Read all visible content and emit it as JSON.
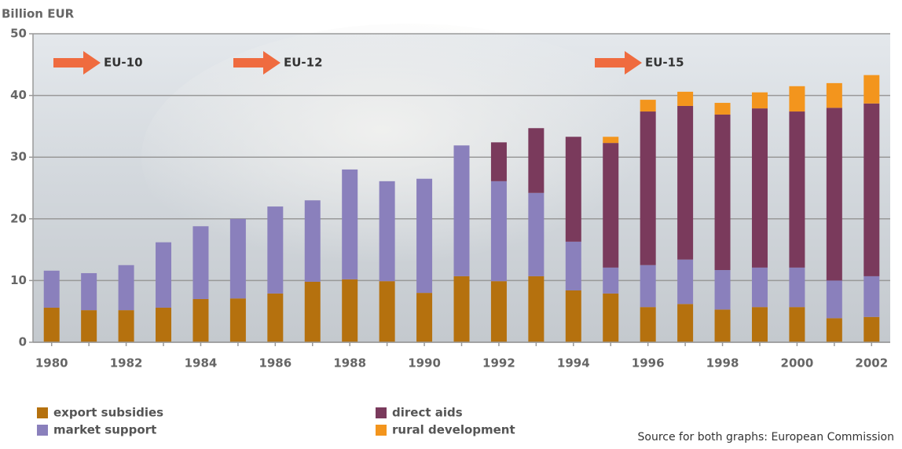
{
  "chart_data": {
    "type": "stacked_bar",
    "y_label": "Billion EUR",
    "categories": [
      "1980",
      null,
      "1982",
      null,
      "1984",
      null,
      "1986",
      null,
      "1988",
      null,
      "1990",
      null,
      "1992",
      null,
      "1994",
      null,
      "1996",
      null,
      "1998",
      null,
      "2000",
      null,
      "2002"
    ],
    "series": [
      {
        "name": "export subsidies",
        "color": "#b5710e",
        "values": [
          5.6,
          5.2,
          5.2,
          5.6,
          7.0,
          7.1,
          7.9,
          9.8,
          10.2,
          9.9,
          8.0,
          10.7,
          9.9,
          10.7,
          8.4,
          7.9,
          5.7,
          6.2,
          5.3,
          5.7,
          5.7,
          3.9,
          4.1
        ]
      },
      {
        "name": "market support",
        "color": "#8a80bc",
        "values": [
          6.0,
          6.0,
          7.3,
          10.6,
          11.8,
          12.9,
          14.1,
          13.2,
          17.8,
          16.2,
          18.5,
          21.2,
          16.2,
          13.5,
          7.9,
          4.2,
          6.8,
          7.2,
          6.4,
          6.4,
          6.4,
          6.1,
          6.6
        ]
      },
      {
        "name": "direct aids",
        "color": "#7a3a5c",
        "values": [
          0,
          0,
          0,
          0,
          0,
          0,
          0,
          0,
          0,
          0,
          0,
          0,
          6.3,
          10.5,
          17.0,
          20.2,
          24.9,
          24.9,
          25.2,
          25.8,
          25.3,
          28.0,
          28.0
        ]
      },
      {
        "name": "rural development",
        "color": "#f3951d",
        "values": [
          0,
          0,
          0,
          0,
          0,
          0,
          0,
          0,
          0,
          0,
          0,
          0,
          0,
          0,
          0,
          1.0,
          1.9,
          2.3,
          1.9,
          2.6,
          4.1,
          4.0,
          4.6
        ]
      }
    ],
    "ylim": [
      0,
      50
    ],
    "yticks": [
      0,
      10,
      20,
      30,
      40,
      50
    ],
    "grid": true,
    "annotations": [
      "EU-10",
      "EU-12",
      "EU-15"
    ],
    "source": "Source for both graphs: European Commission"
  }
}
